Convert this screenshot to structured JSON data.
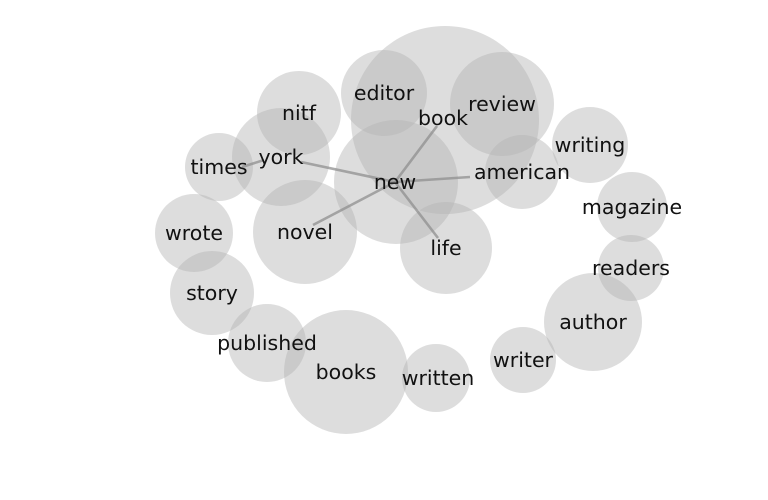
{
  "diagram": {
    "words": [
      {
        "id": "book",
        "label": "book"
      },
      {
        "id": "review",
        "label": "review"
      },
      {
        "id": "editor",
        "label": "editor"
      },
      {
        "id": "nitf",
        "label": "nitf"
      },
      {
        "id": "new",
        "label": "new"
      },
      {
        "id": "york",
        "label": "york"
      },
      {
        "id": "times",
        "label": "times"
      },
      {
        "id": "novel",
        "label": "novel"
      },
      {
        "id": "american",
        "label": "american"
      },
      {
        "id": "writing",
        "label": "writing"
      },
      {
        "id": "life",
        "label": "life"
      },
      {
        "id": "magazine",
        "label": "magazine"
      },
      {
        "id": "wrote",
        "label": "wrote"
      },
      {
        "id": "readers",
        "label": "readers"
      },
      {
        "id": "story",
        "label": "story"
      },
      {
        "id": "author",
        "label": "author"
      },
      {
        "id": "published",
        "label": "published"
      },
      {
        "id": "books",
        "label": "books"
      },
      {
        "id": "written",
        "label": "written"
      },
      {
        "id": "writer",
        "label": "writer"
      }
    ],
    "links": [
      {
        "from": "new",
        "to": "book"
      },
      {
        "from": "new",
        "to": "york"
      },
      {
        "from": "new",
        "to": "novel"
      },
      {
        "from": "new",
        "to": "american"
      },
      {
        "from": "new",
        "to": "life"
      },
      {
        "from": "york",
        "to": "times"
      }
    ]
  }
}
